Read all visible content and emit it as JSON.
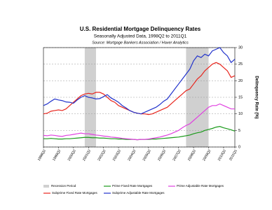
{
  "chart_data": {
    "type": "line",
    "title": "U.S. Residential Mortgage Delinquency Rates",
    "subtitle": "Seasonally Adjusted Data, 1998Q2 to 2011Q1",
    "source": "Source: Mortgage Bankers Association / Haver Analytics",
    "y_axis_label": "Delinquency Rate (%)",
    "categories": [
      "1998Q2",
      null,
      null,
      null,
      "1999Q2",
      null,
      null,
      null,
      "2000Q2",
      null,
      null,
      null,
      "2001Q2",
      null,
      null,
      null,
      "2002Q2",
      null,
      null,
      null,
      "2003Q2",
      null,
      null,
      null,
      "2004Q2",
      null,
      null,
      null,
      "2005Q2",
      null,
      null,
      null,
      "2006Q2",
      null,
      null,
      null,
      "2007Q2",
      null,
      null,
      null,
      "2008Q2",
      null,
      null,
      null,
      "2009Q2",
      null,
      null,
      null,
      "2010Q2",
      null,
      null,
      "2011Q1"
    ],
    "recession_label": "Recession Period",
    "recession_color": "#d0d0d0",
    "recession_periods": [
      [
        11,
        14
      ],
      [
        38,
        44
      ]
    ],
    "ylim": [
      0,
      30
    ],
    "yticks": [
      0,
      5,
      10,
      15,
      20,
      25,
      30
    ],
    "grid": true,
    "series": [
      {
        "name": "Prime Fixed Rate Mortgages",
        "color": "#1a9a1a",
        "values": [
          2.5,
          2.5,
          2.6,
          2.5,
          2.4,
          2.4,
          2.5,
          2.5,
          2.6,
          2.7,
          2.8,
          2.9,
          2.9,
          2.8,
          2.8,
          2.7,
          2.7,
          2.6,
          2.5,
          2.5,
          2.4,
          2.4,
          2.3,
          2.3,
          2.3,
          2.2,
          2.3,
          2.3,
          2.3,
          2.4,
          2.4,
          2.5,
          2.6,
          2.7,
          2.8,
          2.9,
          3.0,
          3.2,
          3.4,
          3.6,
          4.0,
          4.3,
          4.5,
          5.0,
          5.3,
          5.6,
          6.0,
          6.2,
          5.8,
          5.5,
          5.2,
          4.8
        ]
      },
      {
        "name": "Prime Adjustable Rate Mortgages",
        "color": "#e040e0",
        "values": [
          3.5,
          3.4,
          3.6,
          3.5,
          3.3,
          3.2,
          3.5,
          3.6,
          3.8,
          4.0,
          4.2,
          4.0,
          4.0,
          3.8,
          3.6,
          3.5,
          3.3,
          3.2,
          3.0,
          2.9,
          2.8,
          2.6,
          2.5,
          2.4,
          2.3,
          2.2,
          2.3,
          2.3,
          2.4,
          2.6,
          2.8,
          3.0,
          3.3,
          3.6,
          4.0,
          4.5,
          5.0,
          5.8,
          6.5,
          7.0,
          8.0,
          9.0,
          10.0,
          11.0,
          12.0,
          12.5,
          12.5,
          13.0,
          12.5,
          12.0,
          11.5,
          11.5
        ]
      },
      {
        "name": "Subprime Fixed Rate Mortgages",
        "color": "#e8261e",
        "values": [
          10.0,
          10.2,
          10.8,
          11.0,
          11.2,
          11.0,
          11.5,
          12.5,
          13.5,
          14.5,
          15.5,
          16.0,
          16.2,
          16.0,
          16.5,
          16.5,
          16.0,
          15.0,
          14.0,
          13.5,
          12.5,
          12.0,
          11.5,
          11.0,
          10.5,
          10.2,
          10.0,
          10.0,
          9.8,
          10.0,
          10.5,
          11.0,
          11.5,
          12.0,
          13.0,
          14.0,
          15.0,
          16.0,
          17.0,
          17.5,
          19.0,
          20.5,
          21.5,
          23.0,
          24.0,
          25.0,
          25.5,
          25.0,
          24.0,
          23.0,
          21.0,
          21.5
        ]
      },
      {
        "name": "Subprime Adjustable Rate Mortgages",
        "color": "#2233cc",
        "values": [
          12.5,
          13.0,
          13.8,
          14.5,
          14.2,
          14.0,
          13.6,
          13.5,
          13.2,
          14.2,
          15.0,
          15.5,
          15.0,
          14.8,
          14.5,
          14.6,
          15.2,
          15.8,
          14.8,
          14.2,
          13.5,
          12.5,
          11.8,
          11.0,
          10.5,
          10.2,
          10.0,
          10.5,
          11.0,
          11.5,
          12.0,
          12.8,
          13.8,
          14.5,
          16.0,
          17.5,
          19.0,
          20.5,
          22.0,
          23.5,
          26.0,
          27.5,
          27.0,
          28.0,
          27.5,
          29.0,
          29.5,
          30.0,
          28.5,
          27.5,
          25.5,
          26.5
        ]
      }
    ]
  }
}
